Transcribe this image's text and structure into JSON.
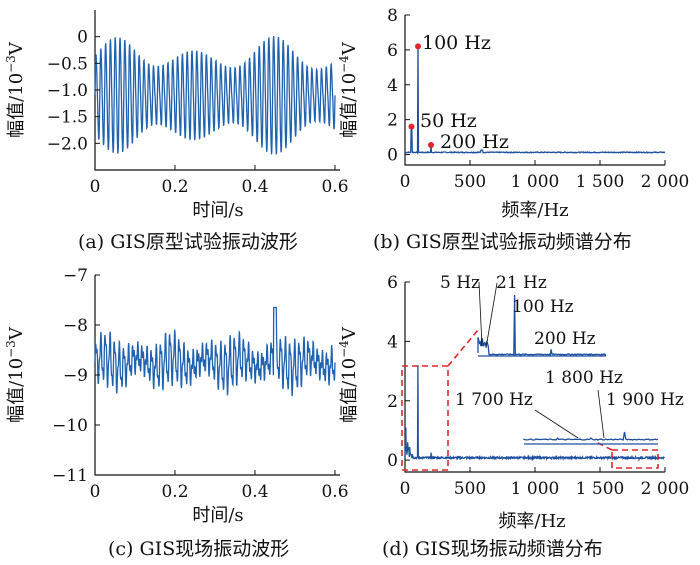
{
  "panels": [
    {
      "id": "a",
      "caption": "(a)  GIS原型试验振动波形",
      "xlabel": "时间/s",
      "ylabel": "幅值/10^-3V",
      "ylabel_base": "幅值/10",
      "ylabel_exp": "−3",
      "ylabel_unit": "V",
      "xticks": [
        "0",
        "0.2",
        "0.4",
        "0.6"
      ],
      "yticks": [
        "0",
        "−0.5",
        "−1.0",
        "−1.5",
        "−2.0"
      ]
    },
    {
      "id": "b",
      "caption": "(b)  GIS原型试验振动频谱分布",
      "xlabel": "频率/Hz",
      "ylabel": "幅值/10^-4V",
      "ylabel_base": "幅值/10",
      "ylabel_exp": "−4",
      "ylabel_unit": "V",
      "xticks": [
        "0",
        "500",
        "1 000",
        "1 500",
        "2 000"
      ],
      "yticks": [
        "0",
        "2",
        "4",
        "6",
        "8"
      ],
      "annotations": [
        "100 Hz",
        "50 Hz",
        "200 Hz"
      ]
    },
    {
      "id": "c",
      "caption": "(c)  GIS现场振动波形",
      "xlabel": "时间/s",
      "ylabel": "幅值/10^-3V",
      "ylabel_base": "幅值/10",
      "ylabel_exp": "−3",
      "ylabel_unit": "V",
      "xticks": [
        "0",
        "0.2",
        "0.4",
        "0.6"
      ],
      "yticks": [
        "−7",
        "−8",
        "−9",
        "−10",
        "−11"
      ]
    },
    {
      "id": "d",
      "caption": "(d)  GIS现场振动频谱分布",
      "xlabel": "频率/Hz",
      "ylabel": "幅值/10^-4V",
      "ylabel_base": "幅值/10",
      "ylabel_exp": "−4",
      "ylabel_unit": "V",
      "xticks": [
        "0",
        "500",
        "1 000",
        "1 500",
        "2 000"
      ],
      "yticks": [
        "0",
        "2",
        "4",
        "6"
      ],
      "inset1_labels": [
        "5 Hz",
        "21 Hz",
        "100 Hz",
        "200 Hz"
      ],
      "inset2_labels": [
        "1 700 Hz",
        "1 800 Hz",
        "1 900 Hz"
      ]
    }
  ],
  "colors": {
    "series": "#1f63b0",
    "highlight": "#e0262a"
  },
  "chart_data": [
    {
      "type": "line",
      "panel": "a",
      "xlim": [
        0,
        0.6
      ],
      "ylim": [
        -2.5,
        0.5
      ],
      "series": [
        {
          "pattern": "oscillation",
          "center": -1.1,
          "amplitude": 0.95,
          "cycles": 50
        }
      ]
    },
    {
      "type": "line",
      "panel": "b",
      "xlim": [
        0,
        2000
      ],
      "ylim": [
        -0.6,
        8
      ],
      "peaks": [
        {
          "x": 50,
          "y": 1.6,
          "label": "50 Hz"
        },
        {
          "x": 100,
          "y": 6.2,
          "label": "100 Hz"
        },
        {
          "x": 200,
          "y": 0.55,
          "label": "200 Hz"
        }
      ],
      "baseline": 0.1
    },
    {
      "type": "line",
      "panel": "c",
      "xlim": [
        0,
        0.6
      ],
      "ylim": [
        -11,
        -7
      ],
      "series": [
        {
          "pattern": "oscillation",
          "center": -8.75,
          "amplitude": 0.45,
          "cycles": 52,
          "peak_max": -7.65,
          "trough_min": -9.55
        }
      ]
    },
    {
      "type": "line",
      "panel": "d",
      "xlim": [
        0,
        2000
      ],
      "ylim": [
        -0.4,
        6
      ],
      "peaks": [
        {
          "x": 5,
          "y": 1.1
        },
        {
          "x": 21,
          "y": 0.6
        },
        {
          "x": 100,
          "y": 3.2
        },
        {
          "x": 200,
          "y": 0.25
        },
        {
          "x": 600,
          "y": 0.1
        },
        {
          "x": 1700,
          "y": 0.02
        },
        {
          "x": 1800,
          "y": 0.02
        },
        {
          "x": 1900,
          "y": 0.05
        }
      ],
      "baseline": 0.05
    }
  ]
}
